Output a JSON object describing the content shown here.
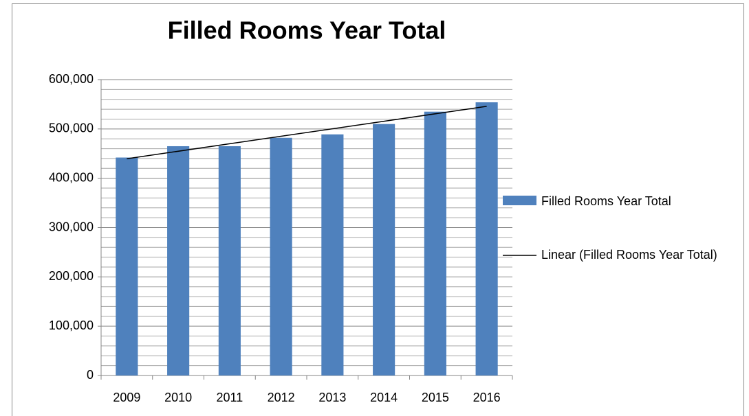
{
  "chart_data": {
    "type": "bar",
    "title": "Filled Rooms Year Total",
    "categories": [
      "2009",
      "2010",
      "2011",
      "2012",
      "2013",
      "2014",
      "2015",
      "2016"
    ],
    "series": [
      {
        "name": "Filled Rooms Year Total",
        "color": "#4f81bd",
        "values": [
          442000,
          465000,
          465000,
          482000,
          489000,
          510000,
          535000,
          554000
        ]
      }
    ],
    "trendline": {
      "name": "Linear (Filled Rooms Year Total)",
      "kind": "linear",
      "color": "#000000"
    },
    "ylim": [
      0,
      600000
    ],
    "yticks": [
      {
        "value": 0,
        "label": "0"
      },
      {
        "value": 100000,
        "label": "100,000"
      },
      {
        "value": 200000,
        "label": "200,000"
      },
      {
        "value": 300000,
        "label": "300,000"
      },
      {
        "value": 400000,
        "label": "400,000"
      },
      {
        "value": 500000,
        "label": "500,000"
      },
      {
        "value": 600000,
        "label": "600,000"
      }
    ],
    "minor_yticks": [
      20000,
      40000,
      60000,
      80000,
      120000,
      140000,
      160000,
      180000,
      220000,
      240000,
      260000,
      280000,
      320000,
      340000,
      360000,
      380000,
      420000,
      440000,
      460000,
      480000,
      520000,
      540000,
      560000,
      580000
    ],
    "grid": true,
    "legend": "right"
  }
}
